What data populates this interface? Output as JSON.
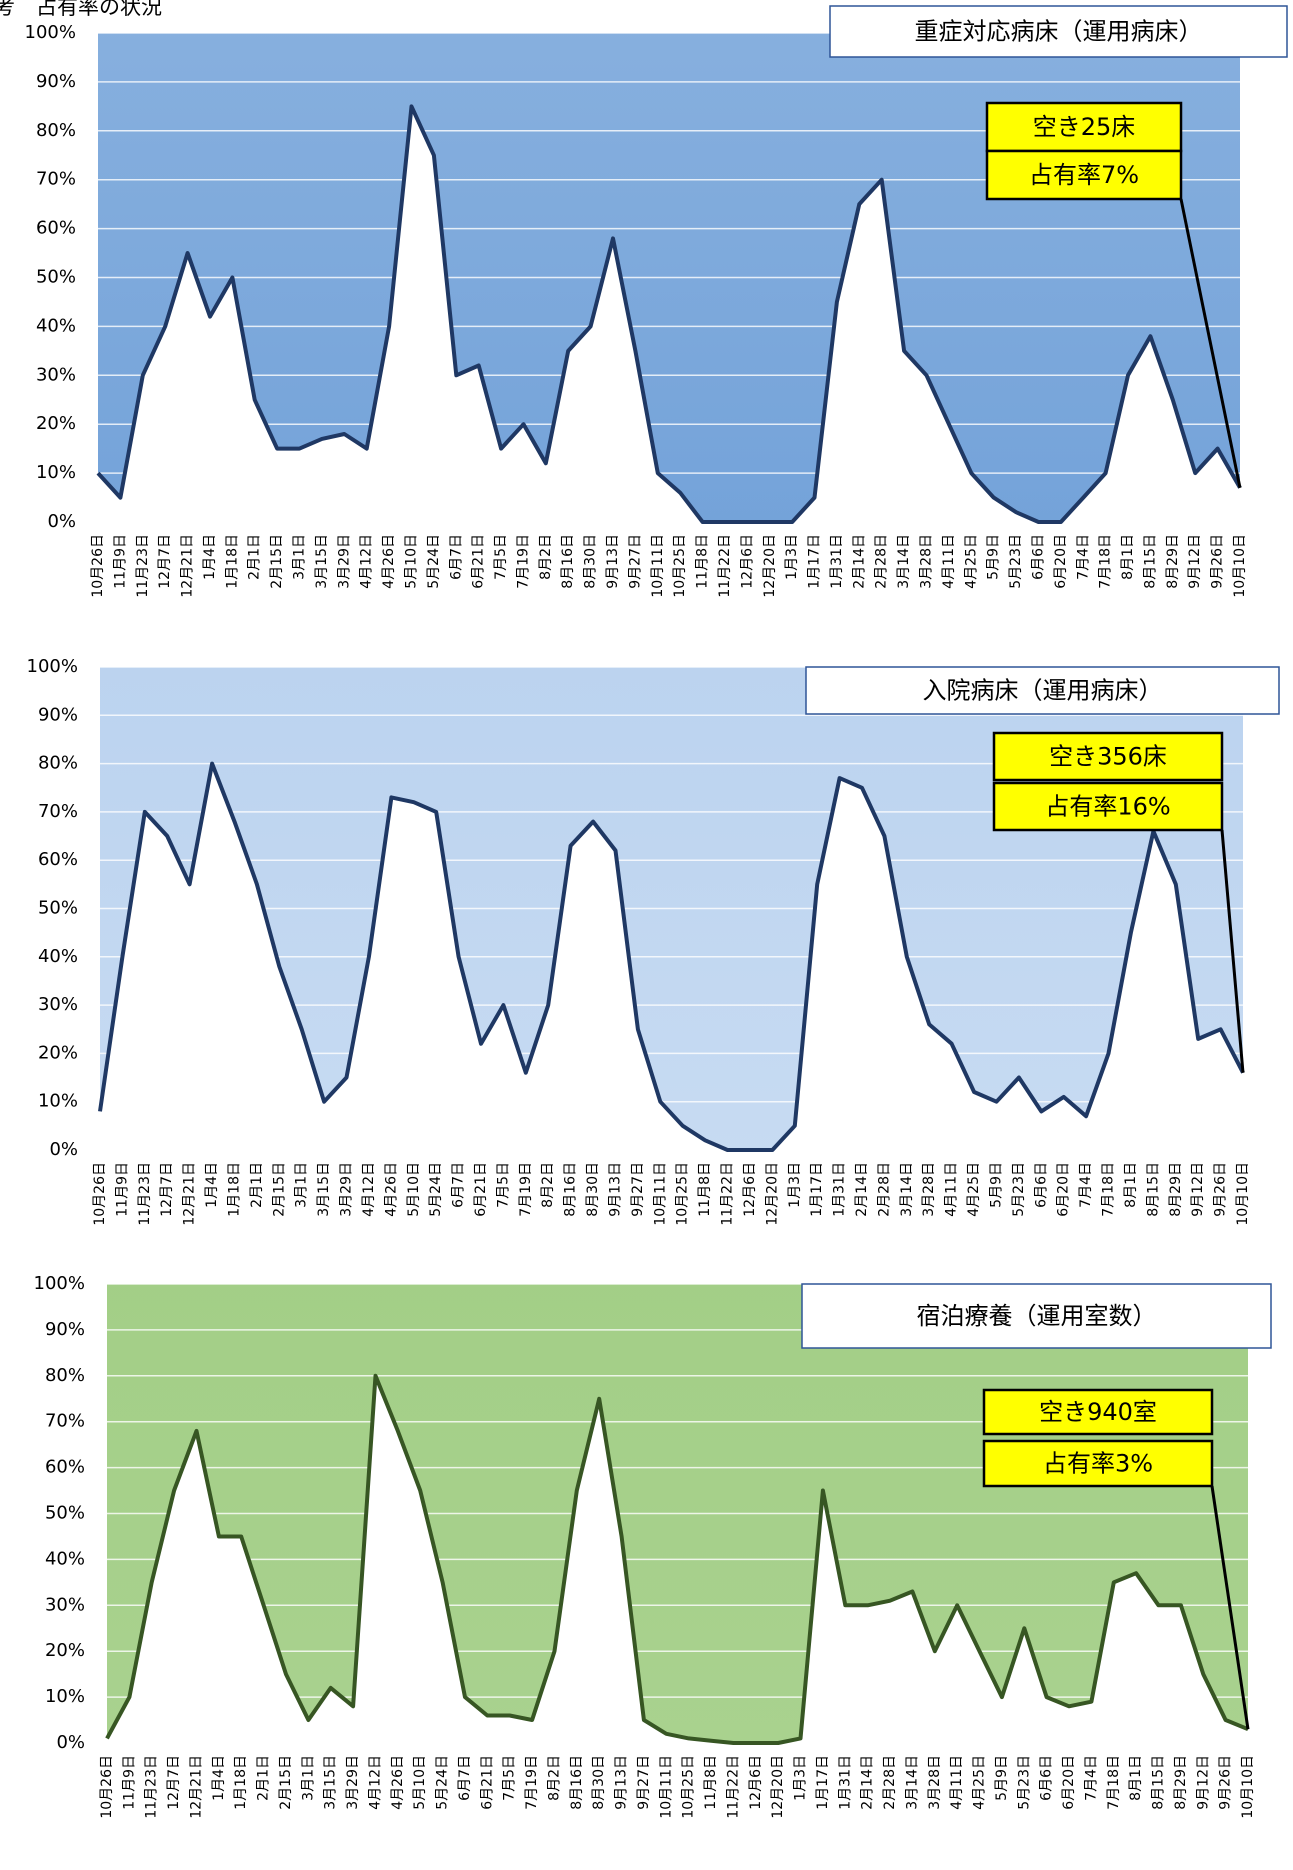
{
  "title": "考　占有率の状況",
  "chart_data": [
    {
      "type": "line",
      "title": "重症対応病床（運用病床）",
      "annotations": [
        "空き25床",
        "占有率7%"
      ],
      "color": "#1f3864",
      "plot_color": "#7faadb",
      "grid": true,
      "categories": [
        "10月26日",
        "11月9日",
        "11月23日",
        "12月7日",
        "12月21日",
        "1月4日",
        "1月18日",
        "2月1日",
        "2月15日",
        "3月1日",
        "3月15日",
        "3月29日",
        "4月12日",
        "4月26日",
        "5月10日",
        "5月24日",
        "6月7日",
        "6月21日",
        "7月5日",
        "7月19日",
        "8月2日",
        "8月16日",
        "8月30日",
        "9月13日",
        "9月27日",
        "10月11日",
        "10月25日",
        "11月8日",
        "11月22日",
        "12月6日",
        "12月20日",
        "1月3日",
        "1月17日",
        "1月31日",
        "2月14日",
        "2月28日",
        "3月14日",
        "3月28日",
        "4月11日",
        "4月25日",
        "5月9日",
        "5月23日",
        "6月6日",
        "6月20日",
        "7月4日",
        "7月18日",
        "8月1日",
        "8月15日",
        "8月29日",
        "9月12日",
        "9月26日",
        "10月10日"
      ],
      "values": [
        10,
        5,
        30,
        40,
        55,
        42,
        50,
        25,
        15,
        15,
        17,
        18,
        15,
        40,
        85,
        75,
        30,
        32,
        15,
        20,
        12,
        35,
        40,
        58,
        35,
        10,
        6,
        0,
        0,
        0,
        0,
        0,
        5,
        45,
        65,
        70,
        35,
        30,
        20,
        10,
        5,
        2,
        0,
        0,
        5,
        10,
        30,
        38,
        25,
        10,
        15,
        7
      ],
      "ylim": [
        0,
        100
      ],
      "yticks": [
        {
          "value": 0,
          "label": "0%"
        },
        {
          "value": 10,
          "label": "10%"
        },
        {
          "value": 20,
          "label": "20%"
        },
        {
          "value": 30,
          "label": "30%"
        },
        {
          "value": 40,
          "label": "40%"
        },
        {
          "value": 50,
          "label": "50%"
        },
        {
          "value": 60,
          "label": "60%"
        },
        {
          "value": 70,
          "label": "70%"
        },
        {
          "value": 80,
          "label": "80%"
        },
        {
          "value": 90,
          "label": "90%"
        },
        {
          "value": 100,
          "label": "100%"
        }
      ]
    },
    {
      "type": "line",
      "title": "入院病床（運用病床）",
      "annotations": [
        "空き356床",
        "占有率16%"
      ],
      "color": "#1f3864",
      "plot_color": "#c5d9f1",
      "grid": true,
      "categories": [
        "10月26日",
        "11月9日",
        "11月23日",
        "12月7日",
        "12月21日",
        "1月4日",
        "1月18日",
        "2月1日",
        "2月15日",
        "3月1日",
        "3月15日",
        "3月29日",
        "4月12日",
        "4月26日",
        "5月10日",
        "5月24日",
        "6月7日",
        "6月21日",
        "7月5日",
        "7月19日",
        "8月2日",
        "8月16日",
        "8月30日",
        "9月13日",
        "9月27日",
        "10月11日",
        "10月25日",
        "11月8日",
        "11月22日",
        "12月6日",
        "12月20日",
        "1月3日",
        "1月17日",
        "1月31日",
        "2月14日",
        "2月28日",
        "3月14日",
        "3月28日",
        "4月11日",
        "4月25日",
        "5月9日",
        "5月23日",
        "6月6日",
        "6月20日",
        "7月4日",
        "7月18日",
        "8月1日",
        "8月15日",
        "8月29日",
        "9月12日",
        "9月26日",
        "10月10日"
      ],
      "values": [
        8,
        40,
        70,
        65,
        55,
        80,
        68,
        55,
        38,
        25,
        10,
        15,
        40,
        73,
        72,
        70,
        40,
        22,
        30,
        16,
        30,
        63,
        68,
        62,
        25,
        10,
        5,
        2,
        0,
        0,
        0,
        5,
        55,
        77,
        75,
        65,
        40,
        26,
        22,
        12,
        10,
        15,
        8,
        11,
        7,
        20,
        45,
        66,
        55,
        23,
        25,
        16
      ],
      "ylim": [
        0,
        100
      ],
      "yticks": [
        {
          "value": 0,
          "label": "0%"
        },
        {
          "value": 10,
          "label": "10%"
        },
        {
          "value": 20,
          "label": "20%"
        },
        {
          "value": 30,
          "label": "30%"
        },
        {
          "value": 40,
          "label": "40%"
        },
        {
          "value": 50,
          "label": "50%"
        },
        {
          "value": 60,
          "label": "60%"
        },
        {
          "value": 70,
          "label": "70%"
        },
        {
          "value": 80,
          "label": "80%"
        },
        {
          "value": 90,
          "label": "90%"
        },
        {
          "value": 100,
          "label": "100%"
        }
      ]
    },
    {
      "type": "line",
      "title": "宿泊療養（運用室数）",
      "annotations": [
        "空き940室",
        "占有率3%"
      ],
      "color": "#375623",
      "plot_color": "#a9d18e",
      "grid": true,
      "categories": [
        "10月26日",
        "11月9日",
        "11月23日",
        "12月7日",
        "12月21日",
        "1月4日",
        "1月18日",
        "2月1日",
        "2月15日",
        "3月1日",
        "3月15日",
        "3月29日",
        "4月12日",
        "4月26日",
        "5月10日",
        "5月24日",
        "6月7日",
        "6月21日",
        "7月5日",
        "7月19日",
        "8月2日",
        "8月16日",
        "8月30日",
        "9月13日",
        "9月27日",
        "10月11日",
        "10月25日",
        "11月8日",
        "11月22日",
        "12月6日",
        "12月20日",
        "1月3日",
        "1月17日",
        "1月31日",
        "2月14日",
        "2月28日",
        "3月14日",
        "3月28日",
        "4月11日",
        "4月25日",
        "5月9日",
        "5月23日",
        "6月6日",
        "6月20日",
        "7月4日",
        "7月18日",
        "8月1日",
        "8月15日",
        "8月29日",
        "9月12日",
        "9月26日",
        "10月10日"
      ],
      "values": [
        1,
        10,
        35,
        55,
        68,
        45,
        45,
        30,
        15,
        5,
        12,
        8,
        80,
        68,
        55,
        35,
        10,
        6,
        6,
        5,
        20,
        55,
        75,
        45,
        5,
        2,
        1,
        0.5,
        0,
        0,
        0,
        1,
        55,
        30,
        30,
        31,
        33,
        20,
        30,
        20,
        10,
        25,
        10,
        8,
        9,
        35,
        37,
        30,
        30,
        15,
        5,
        3
      ],
      "ylim": [
        0,
        100
      ],
      "yticks": [
        {
          "value": 0,
          "label": "0%"
        },
        {
          "value": 10,
          "label": "10%"
        },
        {
          "value": 20,
          "label": "20%"
        },
        {
          "value": 30,
          "label": "30%"
        },
        {
          "value": 40,
          "label": "40%"
        },
        {
          "value": 50,
          "label": "50%"
        },
        {
          "value": 60,
          "label": "60%"
        },
        {
          "value": 70,
          "label": "70%"
        },
        {
          "value": 80,
          "label": "80%"
        },
        {
          "value": 90,
          "label": "90%"
        },
        {
          "value": 100,
          "label": "100%"
        }
      ]
    }
  ]
}
